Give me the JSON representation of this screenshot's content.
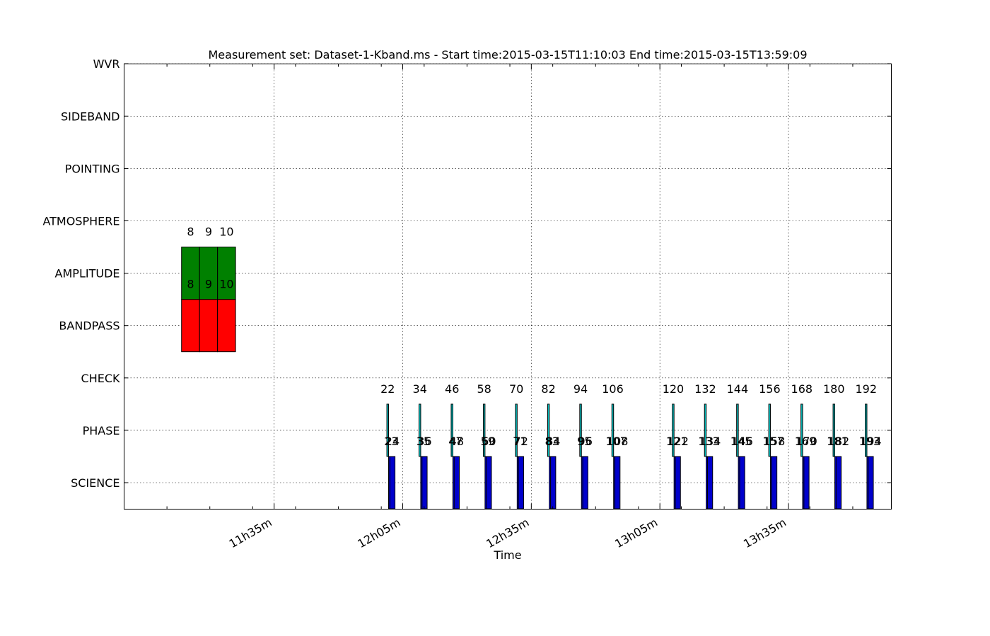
{
  "chart_data": {
    "type": "bar",
    "title": "Measurement set: Dataset-1-Kband.ms - Start time:2015-03-15T11:10:03 End time:2015-03-15T13:59:09",
    "xlabel": "Time",
    "ylabel": "",
    "x_axis": {
      "unit": "minutes after 11h00m",
      "range": [
        0,
        179
      ],
      "tick_labels": [
        {
          "label": "11h35m",
          "value": 35
        },
        {
          "label": "12h05m",
          "value": 65
        },
        {
          "label": "12h35m",
          "value": 95
        },
        {
          "label": "13h05m",
          "value": 125
        },
        {
          "label": "13h35m",
          "value": 155
        }
      ],
      "minor_ticks": [
        10,
        20,
        30,
        40,
        50,
        60,
        70,
        80,
        90,
        100,
        110,
        120,
        130,
        140,
        150,
        160,
        170
      ]
    },
    "categories": [
      "SCIENCE",
      "PHASE",
      "CHECK",
      "BANDPASS",
      "AMPLITUDE",
      "ATMOSPHERE",
      "POINTING",
      "SIDEBAND",
      "WVR"
    ],
    "grid": true,
    "colors": {
      "science": "#0000cc",
      "phase": "#00bfbf",
      "bandpass": "#ff0000",
      "amplitude": "#008000",
      "edge": "#000000",
      "grid": "#000000"
    },
    "scans": [
      {
        "intent": "AMPLITUDE",
        "start": 13.4,
        "end": 17.6,
        "label": "8"
      },
      {
        "intent": "AMPLITUDE",
        "start": 17.6,
        "end": 21.8,
        "label": "9"
      },
      {
        "intent": "AMPLITUDE",
        "start": 21.8,
        "end": 26.0,
        "label": "10"
      },
      {
        "intent": "BANDPASS",
        "start": 13.4,
        "end": 17.6,
        "label": "8"
      },
      {
        "intent": "BANDPASS",
        "start": 17.6,
        "end": 21.8,
        "label": "9"
      },
      {
        "intent": "BANDPASS",
        "start": 21.8,
        "end": 26.0,
        "label": "10"
      },
      {
        "intent": "PHASE",
        "start": 61.3,
        "end": 61.7,
        "label": "22"
      },
      {
        "intent": "SCIENCE",
        "start": 61.7,
        "end": 63.0,
        "label": "23"
      },
      {
        "intent": "SCIENCE",
        "start": 62.0,
        "end": 63.2,
        "label": "24"
      },
      {
        "intent": "PHASE",
        "start": 68.8,
        "end": 69.2,
        "label": "34"
      },
      {
        "intent": "SCIENCE",
        "start": 69.2,
        "end": 70.5,
        "label": "35"
      },
      {
        "intent": "SCIENCE",
        "start": 69.5,
        "end": 70.7,
        "label": "36"
      },
      {
        "intent": "PHASE",
        "start": 76.3,
        "end": 76.7,
        "label": "46"
      },
      {
        "intent": "SCIENCE",
        "start": 76.7,
        "end": 78.0,
        "label": "47"
      },
      {
        "intent": "SCIENCE",
        "start": 77.0,
        "end": 78.2,
        "label": "48"
      },
      {
        "intent": "PHASE",
        "start": 83.8,
        "end": 84.2,
        "label": "58"
      },
      {
        "intent": "SCIENCE",
        "start": 84.2,
        "end": 85.5,
        "label": "59"
      },
      {
        "intent": "SCIENCE",
        "start": 84.5,
        "end": 85.7,
        "label": "60"
      },
      {
        "intent": "PHASE",
        "start": 91.3,
        "end": 91.7,
        "label": "70"
      },
      {
        "intent": "SCIENCE",
        "start": 91.7,
        "end": 93.0,
        "label": "71"
      },
      {
        "intent": "SCIENCE",
        "start": 92.0,
        "end": 93.2,
        "label": "72"
      },
      {
        "intent": "PHASE",
        "start": 98.8,
        "end": 99.2,
        "label": "82"
      },
      {
        "intent": "SCIENCE",
        "start": 99.2,
        "end": 100.5,
        "label": "83"
      },
      {
        "intent": "SCIENCE",
        "start": 99.5,
        "end": 100.7,
        "label": "84"
      },
      {
        "intent": "PHASE",
        "start": 106.3,
        "end": 106.7,
        "label": "94"
      },
      {
        "intent": "SCIENCE",
        "start": 106.7,
        "end": 108.0,
        "label": "95"
      },
      {
        "intent": "SCIENCE",
        "start": 107.0,
        "end": 108.2,
        "label": "96"
      },
      {
        "intent": "PHASE",
        "start": 113.8,
        "end": 114.2,
        "label": "106"
      },
      {
        "intent": "SCIENCE",
        "start": 114.2,
        "end": 115.5,
        "label": "107"
      },
      {
        "intent": "SCIENCE",
        "start": 114.5,
        "end": 115.7,
        "label": "108"
      },
      {
        "intent": "PHASE",
        "start": 127.9,
        "end": 128.3,
        "label": "120"
      },
      {
        "intent": "SCIENCE",
        "start": 128.3,
        "end": 129.6,
        "label": "121"
      },
      {
        "intent": "SCIENCE",
        "start": 128.6,
        "end": 129.8,
        "label": "122"
      },
      {
        "intent": "PHASE",
        "start": 135.4,
        "end": 135.8,
        "label": "132"
      },
      {
        "intent": "SCIENCE",
        "start": 135.8,
        "end": 137.1,
        "label": "133"
      },
      {
        "intent": "SCIENCE",
        "start": 136.1,
        "end": 137.3,
        "label": "134"
      },
      {
        "intent": "PHASE",
        "start": 142.9,
        "end": 143.3,
        "label": "144"
      },
      {
        "intent": "SCIENCE",
        "start": 143.3,
        "end": 144.6,
        "label": "145"
      },
      {
        "intent": "SCIENCE",
        "start": 143.6,
        "end": 144.8,
        "label": "146"
      },
      {
        "intent": "PHASE",
        "start": 150.4,
        "end": 150.8,
        "label": "156"
      },
      {
        "intent": "SCIENCE",
        "start": 150.8,
        "end": 152.1,
        "label": "157"
      },
      {
        "intent": "SCIENCE",
        "start": 151.1,
        "end": 152.3,
        "label": "158"
      },
      {
        "intent": "PHASE",
        "start": 157.9,
        "end": 158.3,
        "label": "168"
      },
      {
        "intent": "SCIENCE",
        "start": 158.3,
        "end": 159.6,
        "label": "169"
      },
      {
        "intent": "SCIENCE",
        "start": 158.6,
        "end": 159.8,
        "label": "170"
      },
      {
        "intent": "PHASE",
        "start": 165.4,
        "end": 165.8,
        "label": "180"
      },
      {
        "intent": "SCIENCE",
        "start": 165.8,
        "end": 167.1,
        "label": "181"
      },
      {
        "intent": "SCIENCE",
        "start": 166.1,
        "end": 167.3,
        "label": "182"
      },
      {
        "intent": "PHASE",
        "start": 172.9,
        "end": 173.3,
        "label": "192"
      },
      {
        "intent": "SCIENCE",
        "start": 173.3,
        "end": 174.6,
        "label": "193"
      },
      {
        "intent": "SCIENCE",
        "start": 173.6,
        "end": 174.8,
        "label": "194"
      }
    ]
  }
}
